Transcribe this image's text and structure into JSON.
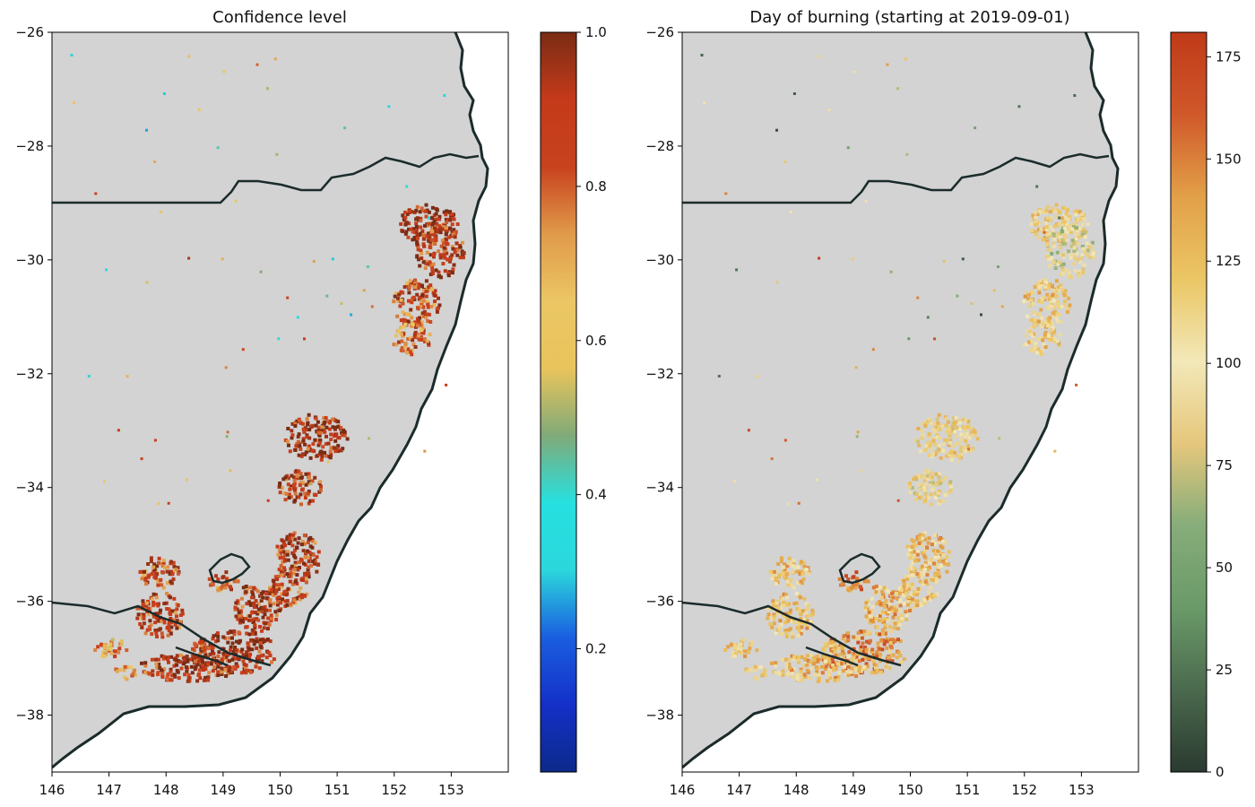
{
  "panels": [
    {
      "title": "Confidence level",
      "xticks": [
        "146",
        "147",
        "148",
        "149",
        "150",
        "151",
        "152",
        "153"
      ],
      "yticks": [
        "−26",
        "−28",
        "−30",
        "−32",
        "−34",
        "−36",
        "−38"
      ],
      "colorbar": {
        "ticks": [
          "0.2",
          "0.4",
          "0.6",
          "0.8",
          "1.0"
        ],
        "range": [
          0.04,
          1.0
        ],
        "stops": [
          "#0c2a8a",
          "#1430c8",
          "#1a5ee0",
          "#2bd7dc",
          "#26e0e0",
          "#80aa78",
          "#e9c45c",
          "#ebc664",
          "#e09a4a",
          "#c8421e",
          "#c43a1a",
          "#7a2c14"
        ]
      }
    },
    {
      "title": "Day of burning (starting at 2019-09-01)",
      "xticks": [
        "146",
        "147",
        "148",
        "149",
        "150",
        "151",
        "152",
        "153"
      ],
      "yticks": [
        "−26",
        "−28",
        "−30",
        "−32",
        "−34",
        "−36",
        "−38"
      ],
      "colorbar": {
        "ticks": [
          "0",
          "25",
          "50",
          "75",
          "100",
          "125",
          "150",
          "175"
        ],
        "range": [
          0,
          181
        ],
        "stops": [
          "#2a3a30",
          "#4b6a4e",
          "#6a9a68",
          "#86ad7a",
          "#e6c77c",
          "#f2e8b8",
          "#ebc664",
          "#e2a048",
          "#d0582a",
          "#c03a18"
        ]
      }
    }
  ],
  "map": {
    "lon_range": [
      146,
      154
    ],
    "lat_range": [
      -39,
      -26
    ],
    "land_color": "#d3d3d3",
    "coast_color": "#1b2b2b"
  }
}
